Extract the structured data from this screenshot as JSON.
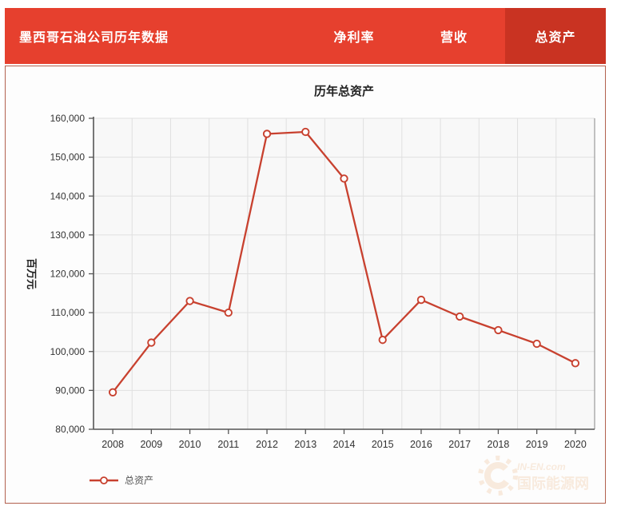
{
  "header": {
    "title": "墨西哥石油公司历年数据",
    "tabs": [
      {
        "label": "净利率",
        "active": false
      },
      {
        "label": "营收",
        "active": false
      },
      {
        "label": "总资产",
        "active": true
      }
    ]
  },
  "chart_data": {
    "type": "line",
    "title": "历年总资产",
    "xlabel": "",
    "ylabel": "百万元",
    "categories": [
      "2008",
      "2009",
      "2010",
      "2011",
      "2012",
      "2013",
      "2014",
      "2015",
      "2016",
      "2017",
      "2018",
      "2019",
      "2020"
    ],
    "series": [
      {
        "name": "总资产",
        "values": [
          89500,
          102300,
          113000,
          110000,
          156000,
          156500,
          144500,
          103000,
          113300,
          109000,
          105500,
          102000,
          97000
        ]
      }
    ],
    "ylim": [
      80000,
      160000
    ],
    "ytick_step": 10000,
    "grid": true,
    "legend_position": "bottom-left",
    "marker": "open-circle"
  },
  "legend": {
    "label": "总资产"
  },
  "watermark": {
    "line1": "IN-EN.com",
    "line2": "国际能源网"
  },
  "colors": {
    "header_bg": "#e6402e",
    "tab_active_bg": "#c93322",
    "panel_border": "#b2614e",
    "line": "#c8412f",
    "marker_fill": "#ffffff",
    "plot_bg": "#f8f8f8",
    "grid": "#e0e0e0",
    "axis": "#555555",
    "tick_text": "#333333",
    "watermark": "#e08a3c"
  }
}
